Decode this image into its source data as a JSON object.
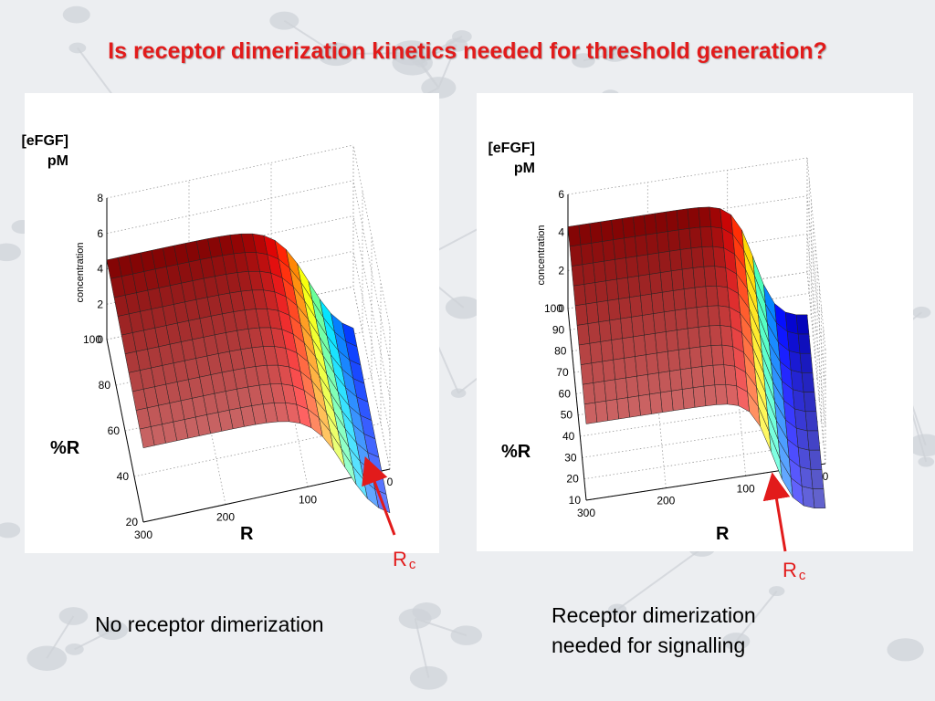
{
  "slide": {
    "title": "Is receptor dimerization kinetics needed for threshold generation?",
    "title_color": "#e21b1b",
    "accent_color": "#e21b1b"
  },
  "chart_data": [
    {
      "type": "surface3d",
      "caption": "No receptor dimerization",
      "zlabel": "concentration",
      "zunit_label": "[eFGF]\npM",
      "ylabel": "%R",
      "xlabel": "R",
      "x_ticks": [
        "300",
        "200",
        "100",
        "0"
      ],
      "y_ticks": [
        "100",
        "80",
        "60",
        "40",
        "20"
      ],
      "z_ticks": [
        "0",
        "2",
        "4",
        "6",
        "8"
      ],
      "zlim": [
        0,
        8
      ],
      "annotation": {
        "text": "R",
        "sub": "c",
        "arrow": true
      },
      "surface": {
        "peak_concentration": 4.5,
        "dropoff": "R near 0"
      }
    },
    {
      "type": "surface3d",
      "caption": "Receptor dimerization needed for signalling",
      "zlabel": "concentration",
      "zunit_label": "[eFGF]\npM",
      "ylabel": "%R",
      "xlabel": "R",
      "x_ticks": [
        "300",
        "200",
        "100",
        "0"
      ],
      "y_ticks": [
        "100",
        "90",
        "80",
        "70",
        "60",
        "50",
        "40",
        "30",
        "20",
        "10"
      ],
      "z_ticks": [
        "0",
        "2",
        "4",
        "6"
      ],
      "zlim": [
        0,
        6
      ],
      "annotation": {
        "text": "R",
        "sub": "c",
        "arrow": true
      },
      "surface": {
        "peak_concentration": 4.3,
        "dropoff": "R near 0"
      }
    }
  ]
}
